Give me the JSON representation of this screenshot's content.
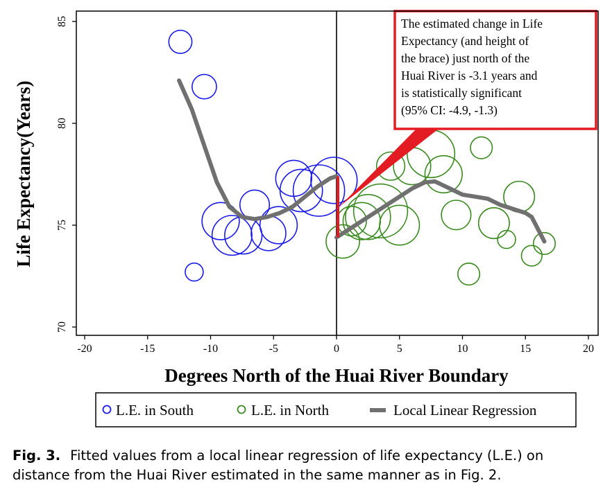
{
  "chart_data": {
    "type": "scatter",
    "xlabel": "Degrees North of the Huai River Boundary",
    "ylabel": "Life Expectancy(Years)",
    "xlim": [
      -20,
      20
    ],
    "ylim": [
      69,
      85
    ],
    "xticks": [
      -20,
      -15,
      -10,
      -5,
      0,
      5,
      10,
      15,
      20
    ],
    "yticks": [
      70,
      75,
      80,
      85
    ],
    "grid": false,
    "legend_position": "bottom",
    "series": [
      {
        "name": "L.E. in South",
        "kind": "bubble",
        "color": "#1a1ae6",
        "points": [
          {
            "x": -12.4,
            "y": 84.0,
            "size": 0.55
          },
          {
            "x": -10.5,
            "y": 81.8,
            "size": 0.6
          },
          {
            "x": -11.3,
            "y": 72.7,
            "size": 0.35
          },
          {
            "x": -9.2,
            "y": 75.2,
            "size": 1.1
          },
          {
            "x": -8.3,
            "y": 74.5,
            "size": 1.2
          },
          {
            "x": -7.4,
            "y": 74.5,
            "size": 1.1
          },
          {
            "x": -6.5,
            "y": 76.0,
            "size": 0.8
          },
          {
            "x": -5.4,
            "y": 74.6,
            "size": 1.0
          },
          {
            "x": -4.6,
            "y": 75.0,
            "size": 1.1
          },
          {
            "x": -3.4,
            "y": 77.3,
            "size": 1.05
          },
          {
            "x": -2.8,
            "y": 76.7,
            "size": 1.3
          },
          {
            "x": -1.4,
            "y": 76.7,
            "size": 1.65
          },
          {
            "x": -0.2,
            "y": 77.2,
            "size": 1.45
          }
        ]
      },
      {
        "name": "L.E. in North",
        "kind": "bubble",
        "color": "#3a8a1f",
        "points": [
          {
            "x": 0.5,
            "y": 74.2,
            "size": 0.95
          },
          {
            "x": 1.2,
            "y": 75.2,
            "size": 0.8
          },
          {
            "x": 2.0,
            "y": 75.2,
            "size": 1.1
          },
          {
            "x": 2.5,
            "y": 75.4,
            "size": 1.4
          },
          {
            "x": 3.5,
            "y": 75.7,
            "size": 1.75
          },
          {
            "x": 4.3,
            "y": 77.9,
            "size": 0.75
          },
          {
            "x": 5.0,
            "y": 75.0,
            "size": 1.2
          },
          {
            "x": 6.0,
            "y": 77.9,
            "size": 1.1
          },
          {
            "x": 7.5,
            "y": 78.5,
            "size": 1.5
          },
          {
            "x": 8.5,
            "y": 77.5,
            "size": 1.1
          },
          {
            "x": 9.5,
            "y": 75.5,
            "size": 0.8
          },
          {
            "x": 10.5,
            "y": 72.6,
            "size": 0.5
          },
          {
            "x": 11.5,
            "y": 78.8,
            "size": 0.5
          },
          {
            "x": 12.5,
            "y": 75.1,
            "size": 0.85
          },
          {
            "x": 13.5,
            "y": 74.3,
            "size": 0.35
          },
          {
            "x": 14.5,
            "y": 76.4,
            "size": 0.85
          },
          {
            "x": 15.5,
            "y": 73.5,
            "size": 0.45
          },
          {
            "x": 16.5,
            "y": 74.1,
            "size": 0.5
          }
        ]
      },
      {
        "name": "Local Linear Regression",
        "kind": "line",
        "color": "#707070",
        "segments": [
          [
            {
              "x": -12.5,
              "y": 82.1
            },
            {
              "x": -11.5,
              "y": 80.7
            },
            {
              "x": -10.5,
              "y": 78.9
            },
            {
              "x": -9.5,
              "y": 77.1
            },
            {
              "x": -8.5,
              "y": 75.9
            },
            {
              "x": -7.5,
              "y": 75.4
            },
            {
              "x": -6.5,
              "y": 75.3
            },
            {
              "x": -5.5,
              "y": 75.4
            },
            {
              "x": -4.5,
              "y": 75.6
            },
            {
              "x": -3.5,
              "y": 75.9
            },
            {
              "x": -2.5,
              "y": 76.4
            },
            {
              "x": -1.5,
              "y": 76.9
            },
            {
              "x": -0.5,
              "y": 77.3
            },
            {
              "x": 0.0,
              "y": 77.4
            }
          ],
          [
            {
              "x": 0.0,
              "y": 74.4
            },
            {
              "x": 1.0,
              "y": 74.8
            },
            {
              "x": 2.0,
              "y": 75.2
            },
            {
              "x": 3.0,
              "y": 75.6
            },
            {
              "x": 4.0,
              "y": 76.0
            },
            {
              "x": 5.0,
              "y": 76.4
            },
            {
              "x": 6.0,
              "y": 76.8
            },
            {
              "x": 7.0,
              "y": 77.1
            },
            {
              "x": 7.8,
              "y": 77.15
            },
            {
              "x": 9.0,
              "y": 76.8
            },
            {
              "x": 10.0,
              "y": 76.5
            },
            {
              "x": 11.0,
              "y": 76.4
            },
            {
              "x": 12.0,
              "y": 76.3
            },
            {
              "x": 13.0,
              "y": 76.0
            },
            {
              "x": 14.0,
              "y": 75.8
            },
            {
              "x": 15.0,
              "y": 75.6
            },
            {
              "x": 15.5,
              "y": 75.4
            },
            {
              "x": 16.0,
              "y": 74.8
            },
            {
              "x": 16.5,
              "y": 74.2
            }
          ]
        ]
      }
    ],
    "boundary_x": 0,
    "discontinuity": {
      "x": 0,
      "y_south": 77.4,
      "y_north": 74.4
    },
    "annotation": {
      "lines": [
        "The estimated change in Life",
        "Expectancy (and height of",
        "the brace) just north of the",
        "Huai River is -3.1 years and",
        "is statistically significant",
        "(95% CI: -4.9, -1.3)"
      ],
      "border_color": "#e31b23",
      "arrow_target": {
        "x": 0.2,
        "y": 75.9
      }
    },
    "legend": [
      "L.E. in South",
      "L.E. in North",
      "Local Linear Regression"
    ]
  },
  "caption": {
    "label": "Fig. 3.",
    "text": "Fitted values from a local linear regression of life expectancy (L.E.) on distance from the Huai River estimated in the same manner as in Fig. 2."
  }
}
